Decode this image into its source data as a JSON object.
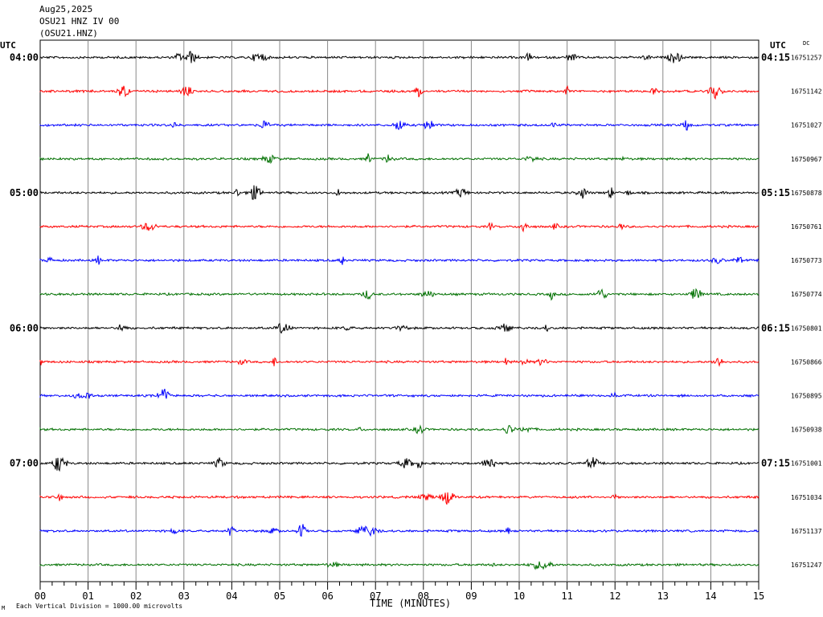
{
  "header": {
    "date": "Aug25,2025",
    "station": "OSU21 HNZ IV 00",
    "channel": "(OSU21.HNZ)"
  },
  "left_tz": "UTC",
  "right_tz": "UTC",
  "dc_label": "DC",
  "footer": {
    "scale_note": "Each Vertical Division = 1000.00 microvolts",
    "corner_mark": "M"
  },
  "chart_data": {
    "type": "line",
    "title": "",
    "xlabel": "TIME (MINUTES)",
    "ylabel": "",
    "x_ticks": [
      "00",
      "01",
      "02",
      "03",
      "04",
      "05",
      "06",
      "07",
      "08",
      "09",
      "10",
      "11",
      "12",
      "13",
      "14",
      "15"
    ],
    "xlim": [
      0,
      15
    ],
    "grid": true,
    "colors": [
      "#000000",
      "#ff0000",
      "#0000ff",
      "#007000"
    ],
    "traces": [
      {
        "left_label": "04:00",
        "right_label": "04:15",
        "offset": "16751257"
      },
      {
        "left_label": "",
        "right_label": "",
        "offset": "16751142"
      },
      {
        "left_label": "",
        "right_label": "",
        "offset": "16751027"
      },
      {
        "left_label": "",
        "right_label": "",
        "offset": "16750967"
      },
      {
        "left_label": "05:00",
        "right_label": "05:15",
        "offset": "16750878"
      },
      {
        "left_label": "",
        "right_label": "",
        "offset": "16750761"
      },
      {
        "left_label": "",
        "right_label": "",
        "offset": "16750773"
      },
      {
        "left_label": "",
        "right_label": "",
        "offset": "16750774"
      },
      {
        "left_label": "06:00",
        "right_label": "06:15",
        "offset": "16750801"
      },
      {
        "left_label": "",
        "right_label": "",
        "offset": "16750866"
      },
      {
        "left_label": "",
        "right_label": "",
        "offset": "16750895"
      },
      {
        "left_label": "",
        "right_label": "",
        "offset": "16750938"
      },
      {
        "left_label": "07:00",
        "right_label": "07:15",
        "offset": "16751001"
      },
      {
        "left_label": "",
        "right_label": "",
        "offset": "16751034"
      },
      {
        "left_label": "",
        "right_label": "",
        "offset": "16751137"
      },
      {
        "left_label": "",
        "right_label": "",
        "offset": "16751247"
      }
    ]
  }
}
